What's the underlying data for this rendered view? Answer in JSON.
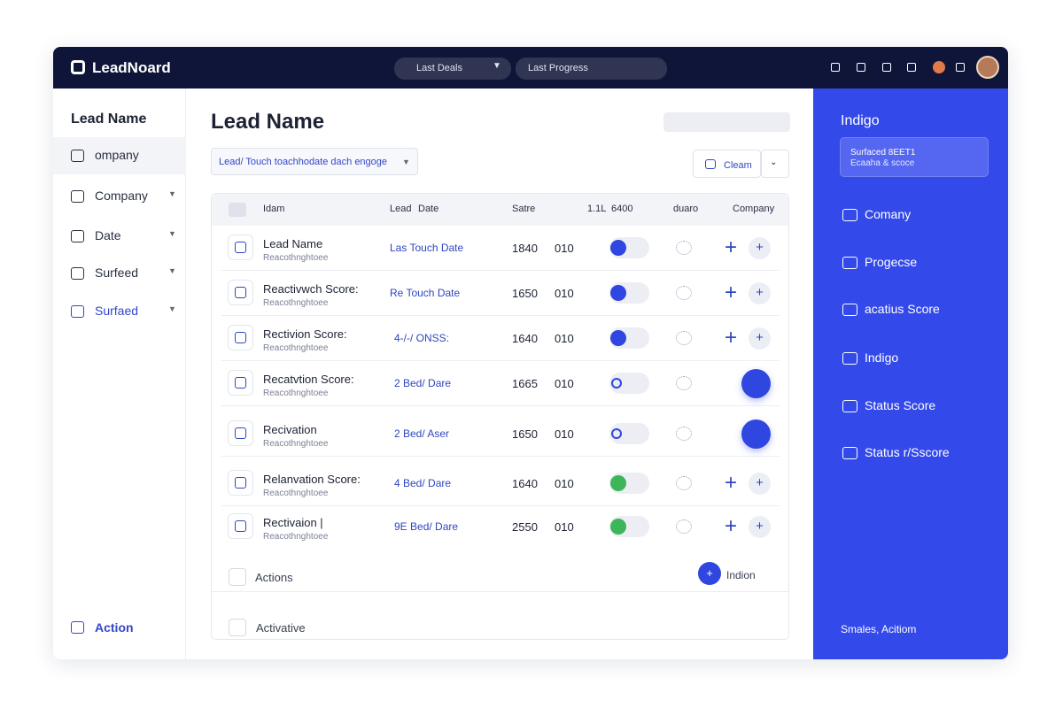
{
  "header": {
    "brand": "LeadNoard",
    "search": "Last Deals",
    "filter": "Last Progress"
  },
  "sidebar": {
    "title": "Lead Name",
    "items": [
      "ompany",
      "Company",
      "Date",
      "Surfeed",
      "Surfaed"
    ],
    "footer": "Action"
  },
  "main": {
    "title": "Lead Name",
    "filter": "Lead/ Touch toachhodate dach engoge",
    "button": "Cleam",
    "table": {
      "columns": [
        "Idam",
        "Lead",
        "Date",
        "Satre",
        "1.1L",
        "6400",
        "duaro",
        "Company"
      ],
      "rows": [
        [
          "Lead Name",
          "Reacothnghtoee",
          "Las Touch Date",
          "1840",
          "010"
        ],
        [
          "Reactivwch Score:",
          "Reacothnghtoee",
          "Re Touch Date",
          "1650",
          "010"
        ],
        [
          "Rectivion Score:",
          "Reacothnghtoee",
          "4-/-/ ONSS:",
          "1640",
          "010"
        ],
        [
          "Recatvtion Score:",
          "Reacothnghtoee",
          "2 Bed/ Dare",
          "1665",
          "010"
        ],
        [
          "Recivation",
          "Reacothnghtoee",
          "2 Bed/ Aser",
          "1650",
          "010"
        ],
        [
          "Relanvation Score:",
          "Reacothnghtoee",
          "4 Bed/ Dare",
          "1640",
          "010"
        ],
        [
          "Rectivaion |",
          "Reacothnghtoee",
          "9E Bed/ Dare",
          "2550",
          "010"
        ]
      ],
      "footer": [
        "Actions",
        "Indion",
        "Activative"
      ]
    }
  },
  "panel": {
    "title": "Indigo",
    "card": [
      "Surfaced 8EET1",
      "Ecaaha & scoce"
    ],
    "items": [
      "Comany",
      "Progecse",
      "acatius Score",
      "Indigo",
      "Status Score",
      "Status r/Sscore"
    ],
    "footer": "Smales, Acitiom"
  }
}
